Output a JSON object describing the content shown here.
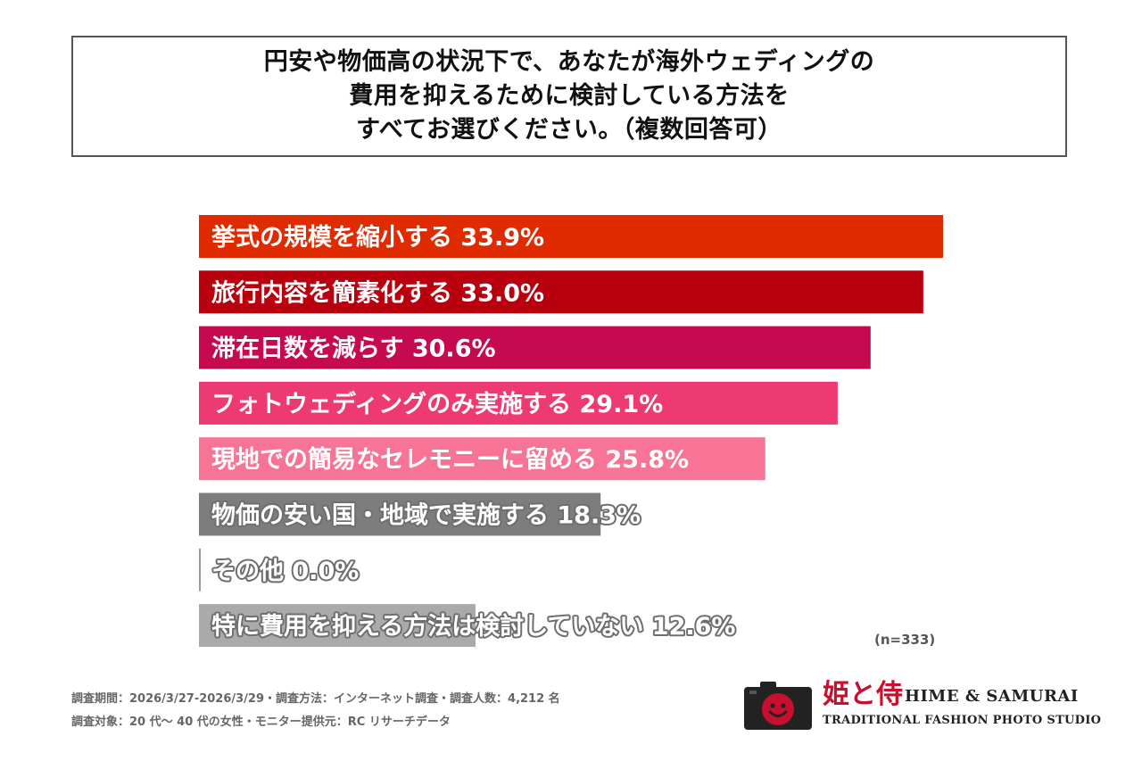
{
  "title": {
    "lines": [
      "円安や物価高の状況下で、あなたが海外ウェディングの",
      "費用を抑えるために検討している方法を",
      "すべてお選びください。（複数回答可）"
    ]
  },
  "chart_data": {
    "type": "bar",
    "orientation": "horizontal",
    "title": "円安や物価高の状況下で、あなたが海外ウェディングの費用を抑えるために検討している方法をすべてお選びください。（複数回答可）",
    "categories": [
      "挙式の規模を縮小する",
      "旅行内容を簡素化する",
      "滞在日数を減らす",
      "フォトウェディングのみ実施する",
      "現地での簡易なセレモニーに留める",
      "物価の安い国・地域で実施する",
      "その他",
      "特に費用を抑える方法は検討していない"
    ],
    "values": [
      33.9,
      33.0,
      30.6,
      29.1,
      25.8,
      18.3,
      0.0,
      12.6
    ],
    "value_labels": [
      "33.9%",
      "33.0%",
      "30.6%",
      "29.1%",
      "25.8%",
      "18.3%",
      "0.0%",
      "12.6%"
    ],
    "colors": [
      "#e02a00",
      "#b8000e",
      "#c50a50",
      "#ee3a73",
      "#f77496",
      "#7d7d7d",
      "#9a9a9a",
      "#aaaaaa"
    ],
    "unit": "%",
    "xlim": [
      0,
      35
    ],
    "grid": false,
    "legend": "none",
    "sample_size": "(n=333)"
  },
  "footnotes": [
    "調査期間：2026/3/27-2026/3/29・調査方法：インターネット調査・調査人数：4,212 名",
    "調査対象：20 代〜 40 代の女性・モニター提供元：RC リサーチデータ"
  ],
  "logo": {
    "kanji": "姫と侍",
    "name": "HIME & SAMURAI",
    "subtitle": "TRADITIONAL FASHION PHOTO STUDIO",
    "color": "#c8102e"
  }
}
